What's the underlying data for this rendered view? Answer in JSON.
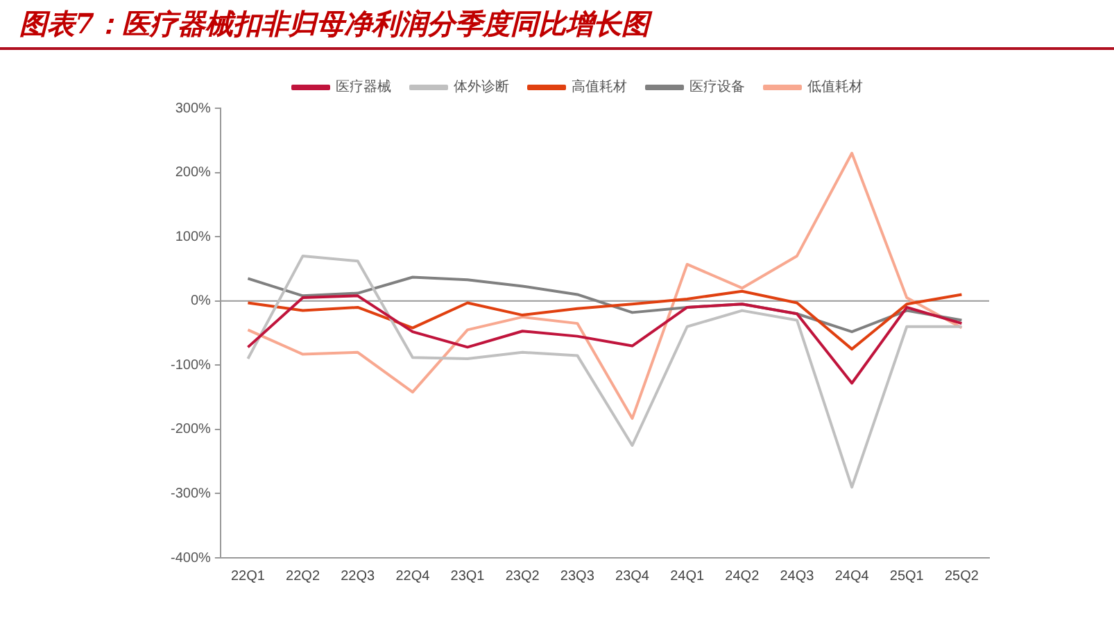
{
  "chart_data": {
    "type": "line",
    "title": "图表7：医疗器械扣非归母净利润分季度同比增长图",
    "categories": [
      "22Q1",
      "22Q2",
      "22Q3",
      "22Q4",
      "23Q1",
      "23Q2",
      "23Q3",
      "23Q4",
      "24Q1",
      "24Q2",
      "24Q3",
      "24Q4",
      "25Q1",
      "25Q2"
    ],
    "series": [
      {
        "name": "医疗器械",
        "color": "#c0143c",
        "values": [
          -72,
          5,
          8,
          -48,
          -72,
          -47,
          -55,
          -70,
          -10,
          -5,
          -20,
          -128,
          -10,
          -35
        ]
      },
      {
        "name": "体外诊断",
        "color": "#c0c0c0",
        "values": [
          -90,
          70,
          62,
          -88,
          -90,
          -80,
          -85,
          -225,
          -40,
          -15,
          -30,
          -290,
          -40,
          -40
        ]
      },
      {
        "name": "高值耗材",
        "color": "#e04010",
        "values": [
          -3,
          -15,
          -10,
          -42,
          -3,
          -22,
          -12,
          -5,
          3,
          15,
          -3,
          -75,
          -5,
          10
        ]
      },
      {
        "name": "医疗设备",
        "color": "#808080",
        "values": [
          35,
          8,
          12,
          37,
          33,
          23,
          10,
          -18,
          -10,
          -5,
          -20,
          -48,
          -15,
          -30
        ]
      },
      {
        "name": "低值耗材",
        "color": "#f8a890",
        "values": [
          -45,
          -83,
          -80,
          -142,
          -45,
          -25,
          -35,
          -183,
          57,
          20,
          70,
          230,
          5,
          -42
        ]
      }
    ],
    "ylim": [
      -400,
      300
    ],
    "yticks": [
      {
        "value": -400,
        "label": "-400%"
      },
      {
        "value": -300,
        "label": "-300%"
      },
      {
        "value": -200,
        "label": "-200%"
      },
      {
        "value": -100,
        "label": "-100%"
      },
      {
        "value": 0,
        "label": "0%"
      },
      {
        "value": 100,
        "label": "100%"
      },
      {
        "value": 200,
        "label": "200%"
      },
      {
        "value": 300,
        "label": "300%"
      }
    ],
    "ref_lines": [
      {
        "axis": "y",
        "value": 0,
        "color": "#999999"
      }
    ],
    "grid": false,
    "legend": "top",
    "marker": "none",
    "line_style": "solid"
  }
}
